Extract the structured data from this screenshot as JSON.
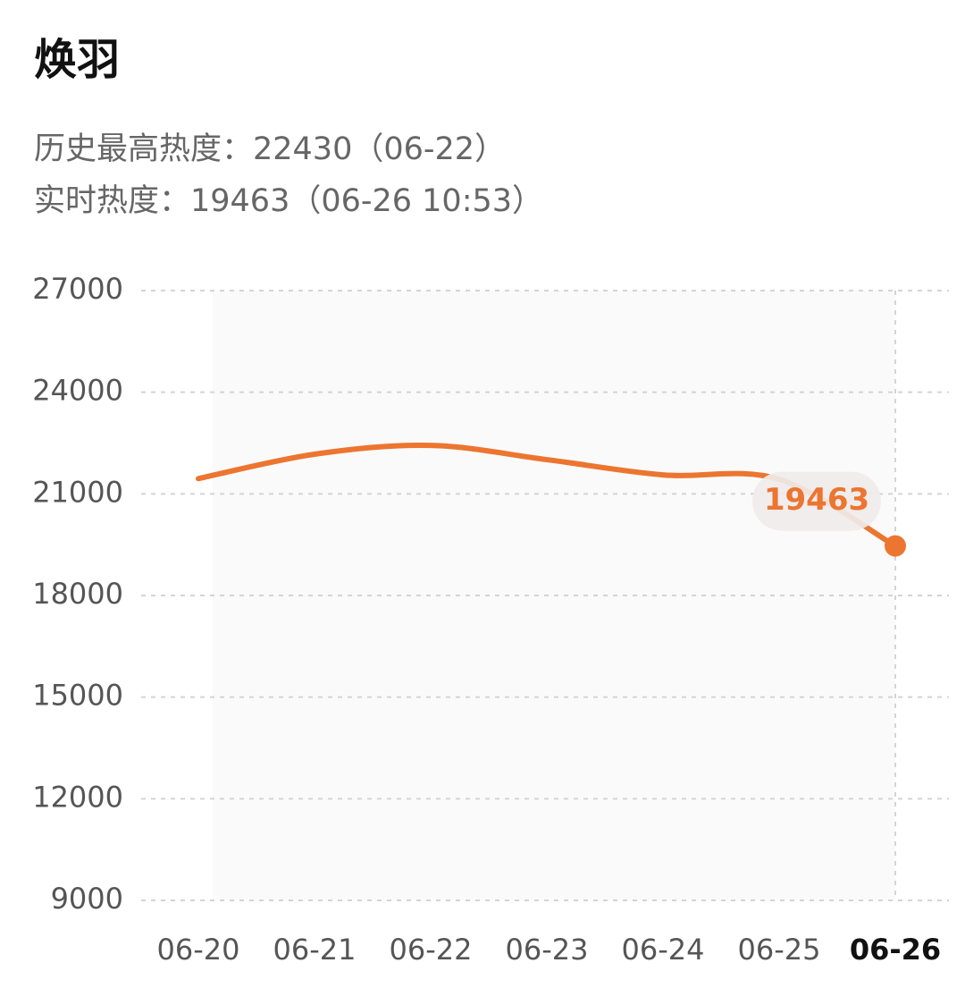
{
  "title": "焕羽",
  "info_lines": [
    "历史最高热度：22430（06-22）",
    "实时热度：19463（06-26 10:53）"
  ],
  "chart_data": {
    "type": "line",
    "categories": [
      "06-20",
      "06-21",
      "06-22",
      "06-23",
      "06-24",
      "06-25",
      "06-26"
    ],
    "values": [
      21450,
      22170,
      22430,
      22010,
      21560,
      21430,
      19463
    ],
    "color": "#ec7530",
    "ylim": [
      9000,
      27000
    ],
    "yticks": [
      9000,
      12000,
      15000,
      18000,
      21000,
      24000,
      27000
    ],
    "grid": true
  }
}
